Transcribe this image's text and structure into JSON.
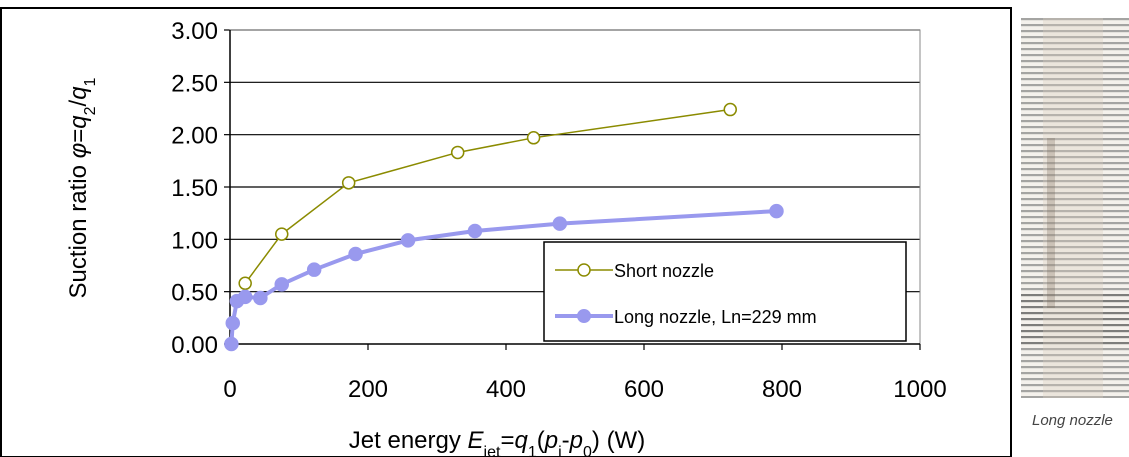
{
  "chart_data": {
    "type": "line",
    "xlabel_parts": [
      "Jet energy ",
      "E",
      "jet",
      "=",
      "q",
      "1",
      "(",
      "p",
      "i",
      "-",
      "p",
      "0",
      ") (W)"
    ],
    "ylabel_parts": [
      "Suction ratio ",
      "φ",
      "=",
      "q",
      "2",
      "/",
      "q",
      "1"
    ],
    "xlim": [
      0,
      1000
    ],
    "ylim": [
      0,
      3
    ],
    "x_ticks": [
      "0",
      "200",
      "400",
      "600",
      "800",
      "1000"
    ],
    "y_ticks": [
      "0.00",
      "0.50",
      "1.00",
      "1.50",
      "2.00",
      "2.50",
      "3.00"
    ],
    "grid": "horizontal",
    "legend_position": "bottom-right",
    "series": [
      {
        "name": "Short nozzle",
        "color": "#8b8b00",
        "marker": "open-circle",
        "x": [
          22,
          75,
          172,
          330,
          440,
          725
        ],
        "y": [
          0.58,
          1.05,
          1.54,
          1.83,
          1.97,
          2.24
        ]
      },
      {
        "name": "Long nozzle, Ln=229 mm",
        "color": "#9999ee",
        "marker": "filled-circle",
        "x": [
          2,
          4,
          10,
          22,
          44,
          75,
          122,
          182,
          258,
          355,
          478,
          792
        ],
        "y": [
          0.0,
          0.2,
          0.41,
          0.45,
          0.44,
          0.57,
          0.71,
          0.86,
          0.99,
          1.08,
          1.15,
          1.27
        ]
      }
    ]
  },
  "photo": {
    "caption": "Long nozzle",
    "icon": "nozzle-photo"
  }
}
